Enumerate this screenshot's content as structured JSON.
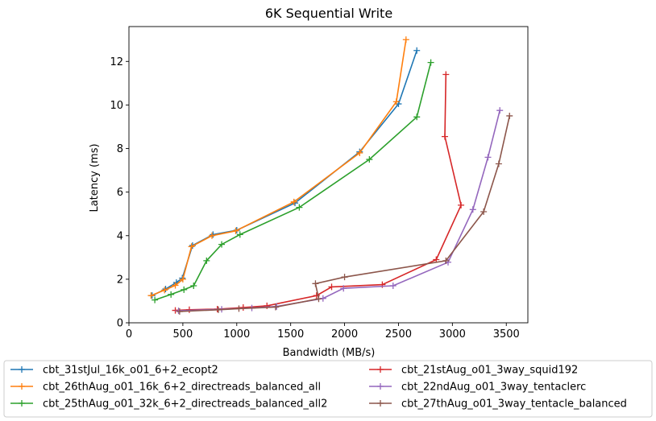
{
  "chart_data": {
    "type": "line",
    "title": "6K  Sequential Write",
    "xlabel": "Bandwidth (MB/s)",
    "ylabel": "Latency (ms)",
    "xlim": [
      0,
      3700
    ],
    "ylim": [
      0,
      13.6
    ],
    "xticks": [
      0,
      500,
      1000,
      1500,
      2000,
      2500,
      3000,
      3500
    ],
    "yticks": [
      0,
      2,
      4,
      6,
      8,
      10,
      12
    ],
    "grid": false,
    "legend": "bottom, two columns",
    "series": [
      {
        "name": "cbt_31stJul_16k_o01_6+2_ecopt2",
        "color": "#1f77b4",
        "points": [
          [
            215,
            1.25
          ],
          [
            340,
            1.55
          ],
          [
            440,
            1.85
          ],
          [
            495,
            2.05
          ],
          [
            590,
            3.55
          ],
          [
            780,
            4.05
          ],
          [
            1000,
            4.25
          ],
          [
            1540,
            5.5
          ],
          [
            2140,
            7.85
          ],
          [
            2500,
            10.05
          ],
          [
            2670,
            12.5
          ]
        ]
      },
      {
        "name": "cbt_26thAug_o01_16k_6+2_directreads_balanced_all",
        "color": "#ff7f0e",
        "points": [
          [
            205,
            1.25
          ],
          [
            330,
            1.5
          ],
          [
            430,
            1.72
          ],
          [
            500,
            2.0
          ],
          [
            580,
            3.5
          ],
          [
            770,
            4.0
          ],
          [
            990,
            4.22
          ],
          [
            1530,
            5.55
          ],
          [
            2140,
            7.8
          ],
          [
            2480,
            10.15
          ],
          [
            2570,
            13.0
          ]
        ]
      },
      {
        "name": "cbt_25thAug_o01_32k_6+2_directreads_balanced_all2",
        "color": "#2ca02c",
        "points": [
          [
            240,
            1.05
          ],
          [
            390,
            1.3
          ],
          [
            510,
            1.52
          ],
          [
            600,
            1.7
          ],
          [
            720,
            2.85
          ],
          [
            860,
            3.6
          ],
          [
            1030,
            4.05
          ],
          [
            1580,
            5.3
          ],
          [
            2230,
            7.5
          ],
          [
            2670,
            9.45
          ],
          [
            2800,
            11.95
          ]
        ]
      },
      {
        "name": "cbt_21stAug_o01_3way_squid192",
        "color": "#d62728",
        "points": [
          [
            430,
            0.57
          ],
          [
            560,
            0.6
          ],
          [
            820,
            0.63
          ],
          [
            1060,
            0.7
          ],
          [
            1280,
            0.78
          ],
          [
            1740,
            1.25
          ],
          [
            1880,
            1.65
          ],
          [
            2350,
            1.75
          ],
          [
            2850,
            2.9
          ],
          [
            3080,
            5.4
          ],
          [
            2930,
            8.55
          ],
          [
            2940,
            11.4
          ]
        ]
      },
      {
        "name": "cbt_22ndAug_o01_3way_tentaclerc",
        "color": "#9467bd",
        "points": [
          [
            460,
            0.55
          ],
          [
            860,
            0.62
          ],
          [
            1140,
            0.68
          ],
          [
            1370,
            0.75
          ],
          [
            1800,
            1.12
          ],
          [
            1990,
            1.58
          ],
          [
            2450,
            1.7
          ],
          [
            2960,
            2.78
          ],
          [
            3190,
            5.2
          ],
          [
            3330,
            7.6
          ],
          [
            3440,
            9.75
          ]
        ]
      },
      {
        "name": "cbt_27thAug_o01_3way_tentacle_balanced",
        "color": "#8c564b",
        "points": [
          [
            470,
            0.52
          ],
          [
            830,
            0.6
          ],
          [
            1020,
            0.65
          ],
          [
            1360,
            0.72
          ],
          [
            1760,
            1.1
          ],
          [
            1730,
            1.8
          ],
          [
            2000,
            2.1
          ],
          [
            2940,
            2.85
          ],
          [
            3290,
            5.1
          ],
          [
            3430,
            7.3
          ],
          [
            3530,
            9.5
          ]
        ]
      }
    ]
  }
}
